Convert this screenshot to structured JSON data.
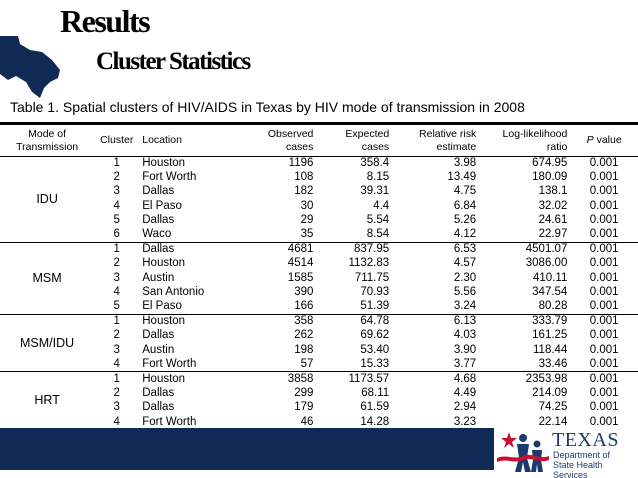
{
  "header": {
    "title": "Results",
    "subtitle": "Cluster Statistics"
  },
  "caption": "Table 1. Spatial clusters of HIV/AIDS in Texas by HIV mode of transmission in 2008",
  "table": {
    "columns": {
      "mode": "Mode of Transmission",
      "cluster": "Cluster",
      "location": "Location",
      "observed": "Observed cases",
      "expected": "Expected cases",
      "rr": "Relative risk estimate",
      "llr": "Log-likelihood ratio",
      "p_italic": "P",
      "p_rest": " value"
    },
    "groups": [
      {
        "mode": "IDU",
        "rows": [
          {
            "cluster": "1",
            "location": "Houston",
            "observed": "1196",
            "expected": "358.4",
            "rr": "3.98",
            "llr": "674.95",
            "p": "0.001"
          },
          {
            "cluster": "2",
            "location": "Fort Worth",
            "observed": "108",
            "expected": "8.15",
            "rr": "13.49",
            "llr": "180.09",
            "p": "0.001"
          },
          {
            "cluster": "3",
            "location": "Dallas",
            "observed": "182",
            "expected": "39.31",
            "rr": "4.75",
            "llr": "138.1",
            "p": "0.001"
          },
          {
            "cluster": "4",
            "location": "El Paso",
            "observed": "30",
            "expected": "4.4",
            "rr": "6.84",
            "llr": "32.02",
            "p": "0.001"
          },
          {
            "cluster": "5",
            "location": "Dallas",
            "observed": "29",
            "expected": "5.54",
            "rr": "5.26",
            "llr": "24.61",
            "p": "0.001"
          },
          {
            "cluster": "6",
            "location": "Waco",
            "observed": "35",
            "expected": "8.54",
            "rr": "4.12",
            "llr": "22.97",
            "p": "0.001"
          }
        ]
      },
      {
        "mode": "MSM",
        "rows": [
          {
            "cluster": "1",
            "location": "Dallas",
            "observed": "4681",
            "expected": "837.95",
            "rr": "6.53",
            "llr": "4501.07",
            "p": "0.001"
          },
          {
            "cluster": "2",
            "location": "Houston",
            "observed": "4514",
            "expected": "1132.83",
            "rr": "4.57",
            "llr": "3086.00",
            "p": "0.001"
          },
          {
            "cluster": "3",
            "location": "Austin",
            "observed": "1585",
            "expected": "711.75",
            "rr": "2.30",
            "llr": "410.11",
            "p": "0.001"
          },
          {
            "cluster": "4",
            "location": "San Antonio",
            "observed": "390",
            "expected": "70.93",
            "rr": "5.56",
            "llr": "347.54",
            "p": "0.001"
          },
          {
            "cluster": "5",
            "location": "El Paso",
            "observed": "166",
            "expected": "51.39",
            "rr": "3.24",
            "llr": "80.28",
            "p": "0.001"
          }
        ]
      },
      {
        "mode": "MSM/IDU",
        "rows": [
          {
            "cluster": "1",
            "location": "Houston",
            "observed": "358",
            "expected": "64.78",
            "rr": "6.13",
            "llr": "333.79",
            "p": "0.001"
          },
          {
            "cluster": "2",
            "location": "Dallas",
            "observed": "262",
            "expected": "69.62",
            "rr": "4.03",
            "llr": "161.25",
            "p": "0.001"
          },
          {
            "cluster": "3",
            "location": "Austin",
            "observed": "198",
            "expected": "53.40",
            "rr": "3.90",
            "llr": "118.44",
            "p": "0.001"
          },
          {
            "cluster": "4",
            "location": "Fort Worth",
            "observed": "57",
            "expected": "15.33",
            "rr": "3.77",
            "llr": "33.46",
            "p": "0.001"
          }
        ]
      },
      {
        "mode": "HRT",
        "rows": [
          {
            "cluster": "1",
            "location": "Houston",
            "observed": "3858",
            "expected": "1173.57",
            "rr": "4.68",
            "llr": "2353.98",
            "p": "0.001"
          },
          {
            "cluster": "2",
            "location": "Dallas",
            "observed": "299",
            "expected": "68.11",
            "rr": "4.49",
            "llr": "214.09",
            "p": "0.001"
          },
          {
            "cluster": "3",
            "location": "Dallas",
            "observed": "179",
            "expected": "61.59",
            "rr": "2.94",
            "llr": "74.25",
            "p": "0.001"
          },
          {
            "cluster": "4",
            "location": "Fort Worth",
            "observed": "46",
            "expected": "14.28",
            "rr": "3.23",
            "llr": "22.14",
            "p": "0.001"
          }
        ]
      }
    ]
  },
  "logo": {
    "name": "TEXAS",
    "dept_line1": "Department of",
    "dept_line2": "State Health Services"
  },
  "colors": {
    "footer": "#0f2a54",
    "logo_blue": "#1d3a6e",
    "logo_red": "#c8102e"
  }
}
